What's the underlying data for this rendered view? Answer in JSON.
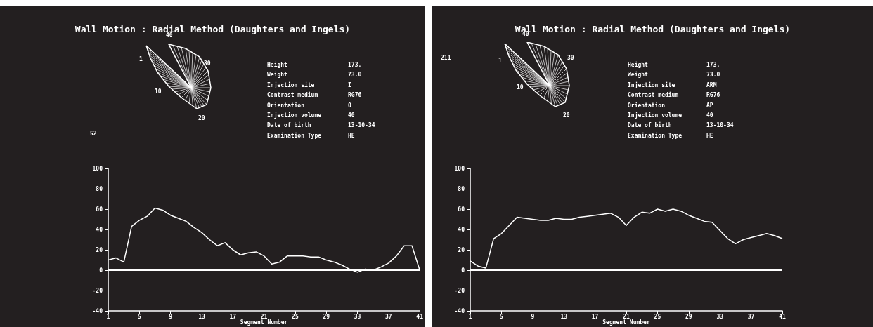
{
  "chart_data": [
    {
      "type": "line",
      "title": "Wall Motion : Radial Method (Daughters and Ingels)",
      "xlabel": "Segment Number",
      "x": [
        1,
        2,
        3,
        4,
        5,
        6,
        7,
        8,
        9,
        10,
        11,
        12,
        13,
        14,
        15,
        16,
        17,
        18,
        19,
        20,
        21,
        22,
        23,
        24,
        25,
        26,
        27,
        28,
        29,
        30,
        31,
        32,
        33,
        34,
        35,
        36,
        37,
        38,
        39,
        40,
        41
      ],
      "series": [
        {
          "color": "#ffffff",
          "values": [
            10,
            12,
            8,
            43,
            49,
            53,
            61,
            59,
            54,
            51,
            48,
            42,
            37,
            30,
            24,
            27,
            20,
            15,
            17,
            18,
            14,
            6,
            8,
            14,
            14,
            14,
            13,
            13,
            10,
            8,
            5,
            1,
            -2,
            1,
            0,
            3,
            7,
            14,
            24,
            24,
            0
          ]
        }
      ],
      "xlim": [
        1,
        41
      ],
      "xticks": [
        1,
        5,
        9,
        13,
        17,
        21,
        25,
        29,
        33,
        37,
        41
      ],
      "ylim": [
        -40,
        100
      ],
      "yticks": [
        -40,
        -20,
        0,
        20,
        40,
        60,
        80,
        100
      ],
      "ref_lines": [
        {
          "axis": "y",
          "value": 0,
          "color": "#ffffff"
        }
      ],
      "marker": "none",
      "line_style": "solid",
      "grid": false,
      "annotations": [
        "Height",
        "173.",
        "Weight",
        "73.0",
        "Injection site",
        "I",
        "Contrast medium",
        "RG76",
        "Orientation",
        "0",
        "Injection volume",
        "40",
        "Date of birth",
        "13-10-34",
        "Examination Type",
        "HE",
        "40",
        "30",
        "1",
        "10",
        "20",
        "52"
      ]
    },
    {
      "type": "line",
      "title": "Wall Motion : Radial Method (Daughters and Ingels)",
      "xlabel": "Segment Number",
      "x": [
        1,
        2,
        3,
        4,
        5,
        6,
        7,
        8,
        9,
        10,
        11,
        12,
        13,
        14,
        15,
        16,
        17,
        18,
        19,
        20,
        21,
        22,
        23,
        24,
        25,
        26,
        27,
        28,
        29,
        30,
        31,
        32,
        33,
        34,
        35,
        36,
        37,
        38,
        39,
        40,
        41
      ],
      "series": [
        {
          "color": "#ffffff",
          "values": [
            9,
            4,
            2,
            31,
            36,
            44,
            52,
            51,
            50,
            49,
            49,
            51,
            50,
            50,
            52,
            53,
            54,
            55,
            56,
            52,
            44,
            52,
            57,
            56,
            60,
            58,
            60,
            58,
            54,
            51,
            48,
            47,
            39,
            31,
            26,
            30,
            32,
            34,
            36,
            34,
            31
          ]
        }
      ],
      "xlim": [
        1,
        41
      ],
      "xticks": [
        1,
        5,
        9,
        13,
        17,
        21,
        25,
        29,
        33,
        37,
        41
      ],
      "ylim": [
        -40,
        100
      ],
      "yticks": [
        -40,
        -20,
        0,
        20,
        40,
        60,
        80,
        100
      ],
      "ref_lines": [
        {
          "axis": "y",
          "value": 0,
          "color": "#ffffff"
        }
      ],
      "marker": "none",
      "line_style": "solid",
      "grid": false,
      "annotations": [
        "Height",
        "173.",
        "Weight",
        "73.0",
        "Injection site",
        "ARM",
        "Contrast medium",
        "RG76",
        "Orientation",
        "AP",
        "Injection volume",
        "40",
        "Date of birth",
        "13-10-34",
        "Examination Type",
        "HE",
        "40",
        "30",
        "1",
        "10",
        "20",
        "211"
      ]
    }
  ]
}
